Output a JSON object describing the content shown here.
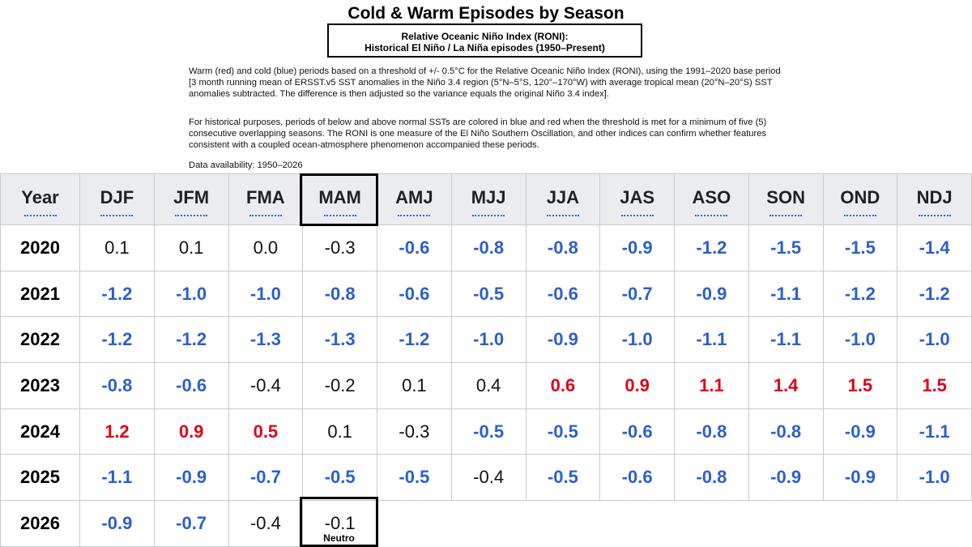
{
  "title": "Cold & Warm Episodes by Season",
  "subtitle": {
    "line1": "Relative Oceanic Niño Index (RONI):",
    "line2": "Historical El Niño / La Niña episodes (1950–Present)"
  },
  "description": {
    "p1": "Warm (red) and cold (blue) periods based on a threshold of +/- 0.5°C for the Relative Oceanic Niño Index (RONI), using the 1991–2020 base period [3 month running mean of ERSST.v5 SST anomalies in the Niño 3.4 region (5°N–5°S, 120°–170°W) with average tropical mean (20°N–20°S) SST anomalies subtracted. The difference is then adjusted so the variance equals the original Niño 3.4 index].",
    "p2": "For historical purposes, periods of below and above normal SSTs are colored in blue and red when the threshold is met for a minimum of five (5) consecutive overlapping seasons. The RONI is one measure of the El Niño Southern Oscillation, and other indices can confirm whether features consistent with a coupled ocean-atmosphere phenomenon accompanied these periods.",
    "p3": "Data availability: 1950–2026"
  },
  "table": {
    "headers": [
      "Year",
      "DJF",
      "JFM",
      "FMA",
      "MAM",
      "AMJ",
      "MJJ",
      "JJA",
      "JAS",
      "ASO",
      "SON",
      "OND",
      "NDJ"
    ],
    "rows": [
      {
        "year": "2020",
        "values": [
          "0.1",
          "0.1",
          "0.0",
          "-0.3",
          "-0.6",
          "-0.8",
          "-0.8",
          "-0.9",
          "-1.2",
          "-1.5",
          "-1.5",
          "-1.4"
        ],
        "classes": [
          "neu",
          "neu",
          "neu",
          "neu",
          "neg",
          "neg",
          "neg",
          "neg",
          "neg",
          "neg",
          "neg",
          "neg"
        ]
      },
      {
        "year": "2021",
        "values": [
          "-1.2",
          "-1.0",
          "-1.0",
          "-0.8",
          "-0.6",
          "-0.5",
          "-0.6",
          "-0.7",
          "-0.9",
          "-1.1",
          "-1.2",
          "-1.2"
        ],
        "classes": [
          "neg",
          "neg",
          "neg",
          "neg",
          "neg",
          "neg",
          "neg",
          "neg",
          "neg",
          "neg",
          "neg",
          "neg"
        ]
      },
      {
        "year": "2022",
        "values": [
          "-1.2",
          "-1.2",
          "-1.3",
          "-1.3",
          "-1.2",
          "-1.0",
          "-0.9",
          "-1.0",
          "-1.1",
          "-1.1",
          "-1.0",
          "-1.0"
        ],
        "classes": [
          "neg",
          "neg",
          "neg",
          "neg",
          "neg",
          "neg",
          "neg",
          "neg",
          "neg",
          "neg",
          "neg",
          "neg"
        ]
      },
      {
        "year": "2023",
        "values": [
          "-0.8",
          "-0.6",
          "-0.4",
          "-0.2",
          "0.1",
          "0.4",
          "0.6",
          "0.9",
          "1.1",
          "1.4",
          "1.5",
          "1.5"
        ],
        "classes": [
          "neg",
          "neg",
          "neu",
          "neu",
          "neu",
          "neu",
          "pos",
          "pos",
          "pos",
          "pos",
          "pos",
          "pos"
        ]
      },
      {
        "year": "2024",
        "values": [
          "1.2",
          "0.9",
          "0.5",
          "0.1",
          "-0.3",
          "-0.5",
          "-0.5",
          "-0.6",
          "-0.8",
          "-0.8",
          "-0.9",
          "-1.1"
        ],
        "classes": [
          "pos",
          "pos",
          "pos",
          "neu",
          "neu",
          "neg",
          "neg",
          "neg",
          "neg",
          "neg",
          "neg",
          "neg"
        ]
      },
      {
        "year": "2025",
        "values": [
          "-1.1",
          "-0.9",
          "-0.7",
          "-0.5",
          "-0.5",
          "-0.4",
          "-0.5",
          "-0.6",
          "-0.8",
          "-0.9",
          "-0.9",
          "-1.0"
        ],
        "classes": [
          "neg",
          "neg",
          "neg",
          "neg",
          "neg",
          "neu",
          "neg",
          "neg",
          "neg",
          "neg",
          "neg",
          "neg"
        ]
      },
      {
        "year": "2026",
        "values": [
          "-0.9",
          "-0.7",
          "-0.4",
          "-0.1"
        ],
        "classes": [
          "neg",
          "neg",
          "neu",
          "neu"
        ]
      }
    ]
  },
  "annotation": {
    "label": "Neutro"
  },
  "colors": {
    "cold": "#2a5fd0",
    "warm": "#e0001a",
    "header_bg": "#eaecf0"
  }
}
